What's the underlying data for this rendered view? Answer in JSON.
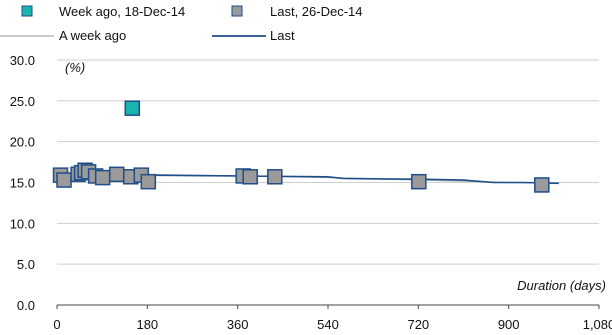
{
  "chart_data": {
    "type": "scatter",
    "title": "",
    "xlabel": "Duration (days)",
    "ylabel": "(%)",
    "xlim": [
      0,
      1080
    ],
    "ylim": [
      0,
      30
    ],
    "xticks": [
      "0",
      "180",
      "360",
      "540",
      "720",
      "900",
      "1,080"
    ],
    "yticks": [
      "0.0",
      "5.0",
      "10.0",
      "15.0",
      "20.0",
      "25.0",
      "30.0"
    ],
    "grid": "horizontal",
    "legend_position": "top",
    "series": [
      {
        "name": "Week ago, 18-Dec-14",
        "kind": "scatter",
        "color": "#1bb5b0",
        "x": [
          150
        ],
        "y": [
          24.1
        ]
      },
      {
        "name": "Last, 26-Dec-14",
        "kind": "scatter",
        "color": "#9a9a9a",
        "x": [
          7,
          14,
          42,
          49,
          56,
          63,
          77,
          91,
          119,
          147,
          168,
          182,
          371,
          385,
          434,
          721,
          966
        ],
        "y": [
          15.9,
          15.3,
          16.0,
          16.2,
          16.5,
          16.3,
          15.8,
          15.6,
          16.0,
          15.7,
          15.9,
          15.1,
          15.8,
          15.7,
          15.7,
          15.1,
          14.7
        ]
      },
      {
        "name": "A week ago",
        "kind": "line",
        "color": "#b8b8b8",
        "x": [
          0,
          180,
          360,
          540,
          720,
          900,
          1000
        ],
        "y": [
          16.0,
          16.0,
          15.8,
          15.6,
          15.3,
          15.0,
          14.9
        ]
      },
      {
        "name": "Last",
        "kind": "line",
        "color": "#1f4e8c",
        "x": [
          0,
          90,
          180,
          270,
          360,
          450,
          540,
          570,
          630,
          720,
          810,
          870,
          930,
          1000
        ],
        "y": [
          15.9,
          15.9,
          15.9,
          15.85,
          15.8,
          15.75,
          15.7,
          15.5,
          15.45,
          15.4,
          15.3,
          15.0,
          15.0,
          14.9
        ]
      }
    ]
  }
}
